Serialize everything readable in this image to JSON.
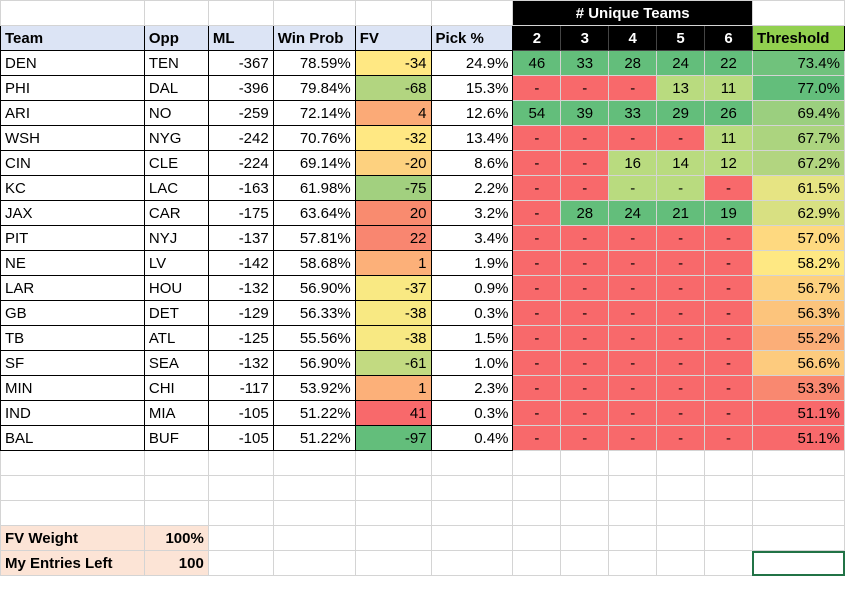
{
  "header": {
    "team": "Team",
    "opp": "Opp",
    "ml": "ML",
    "win_prob": "Win Prob",
    "fv": "FV",
    "pick_pct": "Pick %",
    "threshold": "Threshold",
    "unique_title": "# Unique Teams",
    "unique_cols": [
      "2",
      "3",
      "4",
      "5",
      "6"
    ]
  },
  "colors": {
    "green_dark": "#63be7b",
    "green_mid": "#a9d08e",
    "yellow": "#ffeb84",
    "orange": "#f8b26e",
    "red": "#f8696b",
    "light_green": "#c6e0b4"
  },
  "rows": [
    {
      "team": "DEN",
      "opp": "TEN",
      "ml": "-367",
      "win": "78.59%",
      "fv": "-34",
      "fv_color": "#ffe883",
      "pick": "24.9%",
      "u": [
        "46",
        "33",
        "28",
        "24",
        "22"
      ],
      "u_colors": [
        "#63be7b",
        "#63be7b",
        "#63be7b",
        "#63be7b",
        "#63be7b"
      ],
      "thr": "73.4%",
      "thr_color": "#70c27c"
    },
    {
      "team": "PHI",
      "opp": "DAL",
      "ml": "-396",
      "win": "79.84%",
      "fv": "-68",
      "fv_color": "#b2d580",
      "pick": "15.3%",
      "u": [
        "-",
        "-",
        "-",
        "13",
        "11"
      ],
      "u_colors": [
        "#f8696b",
        "#f8696b",
        "#f8696b",
        "#b9db7f",
        "#b9db7f"
      ],
      "thr": "77.0%",
      "thr_color": "#63be7b"
    },
    {
      "team": "ARI",
      "opp": "NO",
      "ml": "-259",
      "win": "72.14%",
      "fv": "4",
      "fv_color": "#fbaa77",
      "pick": "12.6%",
      "u": [
        "54",
        "39",
        "33",
        "29",
        "26"
      ],
      "u_colors": [
        "#63be7b",
        "#63be7b",
        "#63be7b",
        "#63be7b",
        "#63be7b"
      ],
      "thr": "69.4%",
      "thr_color": "#9bcf7f"
    },
    {
      "team": "WSH",
      "opp": "NYG",
      "ml": "-242",
      "win": "70.76%",
      "fv": "-32",
      "fv_color": "#ffe883",
      "pick": "13.4%",
      "u": [
        "-",
        "-",
        "-",
        "-",
        "11"
      ],
      "u_colors": [
        "#f8696b",
        "#f8696b",
        "#f8696b",
        "#f8696b",
        "#b9db7f"
      ],
      "thr": "67.7%",
      "thr_color": "#acd47f"
    },
    {
      "team": "CIN",
      "opp": "CLE",
      "ml": "-224",
      "win": "69.14%",
      "fv": "-20",
      "fv_color": "#fdd17f",
      "pick": "8.6%",
      "u": [
        "-",
        "-",
        "16",
        "14",
        "12"
      ],
      "u_colors": [
        "#f8696b",
        "#f8696b",
        "#b9db7f",
        "#b9db7f",
        "#b9db7f"
      ],
      "thr": "67.2%",
      "thr_color": "#b2d580"
    },
    {
      "team": "KC",
      "opp": "LAC",
      "ml": "-163",
      "win": "61.98%",
      "fv": "-75",
      "fv_color": "#a2d07f",
      "pick": "2.2%",
      "u": [
        "-",
        "-",
        "-",
        "-",
        "-"
      ],
      "u_colors": [
        "#f8696b",
        "#f8696b",
        "#b9db7f",
        "#b9db7f",
        "#f8696b"
      ],
      "thr": "61.5%",
      "thr_color": "#e6e483"
    },
    {
      "team": "JAX",
      "opp": "CAR",
      "ml": "-175",
      "win": "63.64%",
      "fv": "20",
      "fv_color": "#f98b6f",
      "pick": "3.2%",
      "u": [
        "-",
        "28",
        "24",
        "21",
        "19"
      ],
      "u_colors": [
        "#f8696b",
        "#63be7b",
        "#63be7b",
        "#63be7b",
        "#63be7b"
      ],
      "thr": "62.9%",
      "thr_color": "#d8e082"
    },
    {
      "team": "PIT",
      "opp": "NYJ",
      "ml": "-137",
      "win": "57.81%",
      "fv": "22",
      "fv_color": "#f98670",
      "pick": "3.4%",
      "u": [
        "-",
        "-",
        "-",
        "-",
        "-"
      ],
      "u_colors": [
        "#f8696b",
        "#f8696b",
        "#f8696b",
        "#f8696b",
        "#f8696b"
      ],
      "thr": "57.0%",
      "thr_color": "#fed980"
    },
    {
      "team": "NE",
      "opp": "LV",
      "ml": "-142",
      "win": "58.68%",
      "fv": "1",
      "fv_color": "#fcb079",
      "pick": "1.9%",
      "u": [
        "-",
        "-",
        "-",
        "-",
        "-"
      ],
      "u_colors": [
        "#f8696b",
        "#f8696b",
        "#f8696b",
        "#f8696b",
        "#f8696b"
      ],
      "thr": "58.2%",
      "thr_color": "#fee883"
    },
    {
      "team": "LAR",
      "opp": "HOU",
      "ml": "-132",
      "win": "56.90%",
      "fv": "-37",
      "fv_color": "#f9e983",
      "pick": "0.9%",
      "u": [
        "-",
        "-",
        "-",
        "-",
        "-"
      ],
      "u_colors": [
        "#f8696b",
        "#f8696b",
        "#f8696b",
        "#f8696b",
        "#f8696b"
      ],
      "thr": "56.7%",
      "thr_color": "#fdd17f"
    },
    {
      "team": "GB",
      "opp": "DET",
      "ml": "-129",
      "win": "56.33%",
      "fv": "-38",
      "fv_color": "#f8e983",
      "pick": "0.3%",
      "u": [
        "-",
        "-",
        "-",
        "-",
        "-"
      ],
      "u_colors": [
        "#f8696b",
        "#f8696b",
        "#f8696b",
        "#f8696b",
        "#f8696b"
      ],
      "thr": "56.3%",
      "thr_color": "#fcc47c"
    },
    {
      "team": "TB",
      "opp": "ATL",
      "ml": "-125",
      "win": "55.56%",
      "fv": "-38",
      "fv_color": "#f8e983",
      "pick": "1.5%",
      "u": [
        "-",
        "-",
        "-",
        "-",
        "-"
      ],
      "u_colors": [
        "#f8696b",
        "#f8696b",
        "#f8696b",
        "#f8696b",
        "#f8696b"
      ],
      "thr": "55.2%",
      "thr_color": "#fbae78"
    },
    {
      "team": "SF",
      "opp": "SEA",
      "ml": "-132",
      "win": "56.90%",
      "fv": "-61",
      "fv_color": "#c2da81",
      "pick": "1.0%",
      "u": [
        "-",
        "-",
        "-",
        "-",
        "-"
      ],
      "u_colors": [
        "#f8696b",
        "#f8696b",
        "#f8696b",
        "#f8696b",
        "#f8696b"
      ],
      "thr": "56.6%",
      "thr_color": "#fdcb7e"
    },
    {
      "team": "MIN",
      "opp": "CHI",
      "ml": "-117",
      "win": "53.92%",
      "fv": "1",
      "fv_color": "#fcb079",
      "pick": "2.3%",
      "u": [
        "-",
        "-",
        "-",
        "-",
        "-"
      ],
      "u_colors": [
        "#f8696b",
        "#f8696b",
        "#f8696b",
        "#f8696b",
        "#f8696b"
      ],
      "thr": "53.3%",
      "thr_color": "#f98870"
    },
    {
      "team": "IND",
      "opp": "MIA",
      "ml": "-105",
      "win": "51.22%",
      "fv": "41",
      "fv_color": "#f8696b",
      "pick": "0.3%",
      "u": [
        "-",
        "-",
        "-",
        "-",
        "-"
      ],
      "u_colors": [
        "#f8696b",
        "#f8696b",
        "#f8696b",
        "#f8696b",
        "#f8696b"
      ],
      "thr": "51.1%",
      "thr_color": "#f8696b"
    },
    {
      "team": "BAL",
      "opp": "BUF",
      "ml": "-105",
      "win": "51.22%",
      "fv": "-97",
      "fv_color": "#63be7b",
      "pick": "0.4%",
      "u": [
        "-",
        "-",
        "-",
        "-",
        "-"
      ],
      "u_colors": [
        "#f8696b",
        "#f8696b",
        "#f8696b",
        "#f8696b",
        "#f8696b"
      ],
      "thr": "51.1%",
      "thr_color": "#f8696b"
    }
  ],
  "footer": {
    "fv_weight_label": "FV Weight",
    "fv_weight_value": "100%",
    "entries_label": "My Entries Left",
    "entries_value": "100"
  }
}
